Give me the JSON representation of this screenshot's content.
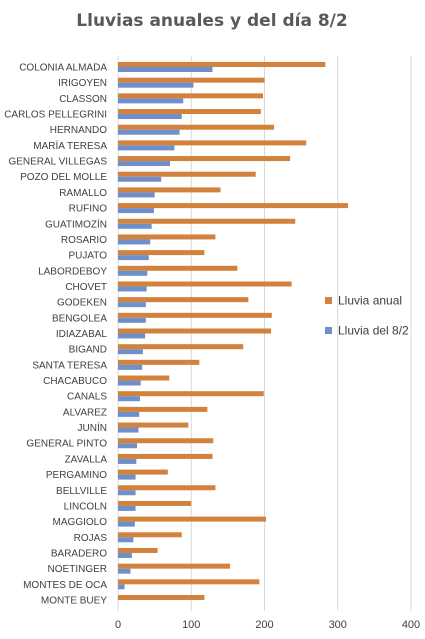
{
  "chart_data": {
    "type": "bar",
    "orientation": "horizontal",
    "title": "Lluvias anuales y del día 8/2",
    "xlabel": "",
    "ylabel": "",
    "xlim": [
      0,
      400
    ],
    "xticks": [
      0,
      100,
      200,
      300,
      400
    ],
    "grid": true,
    "legend_position": "right",
    "categories": [
      "COLONIA ALMADA",
      "IRIGOYEN",
      "CLASSON",
      "CARLOS PELLEGRINI",
      "HERNANDO",
      "MARÍA TERESA",
      "GENERAL VILLEGAS",
      "POZO DEL MOLLE",
      "RAMALLO",
      "RUFINO",
      "GUATIMOZÍN",
      "ROSARIO",
      "PUJATO",
      "LABORDEBOY",
      "CHOVET",
      "GODEKEN",
      "BENGOLEA",
      "IDIAZABAL",
      "BIGAND",
      "SANTA TERESA",
      "CHACABUCO",
      "CANALS",
      "ALVAREZ",
      "JUNÍN",
      "GENERAL PINTO",
      "ZAVALLA",
      "PERGAMINO",
      "BELLVILLE",
      "LINCOLN",
      "MAGGIOLO",
      "ROJAS",
      "BARADERO",
      "NOETINGER",
      "MONTES DE OCA",
      "MONTE BUEY"
    ],
    "series": [
      {
        "name": "Lluvia anual",
        "color": "#D2823C",
        "values": [
          283,
          200,
          198,
          195,
          213,
          257,
          235,
          188,
          140,
          314,
          242,
          133,
          118,
          163,
          237,
          178,
          210,
          209,
          171,
          111,
          70,
          199,
          122,
          96,
          130,
          129,
          68,
          133,
          100,
          202,
          87,
          54,
          153,
          193,
          118
        ]
      },
      {
        "name": "Lluvia del 8/2",
        "color": "#6F8FCB",
        "values": [
          129,
          103,
          89,
          87,
          84,
          77,
          71,
          59,
          50,
          49,
          46,
          44,
          42,
          40,
          39,
          38,
          38,
          37,
          34,
          33,
          31,
          30,
          29,
          28,
          26,
          25,
          24,
          24,
          24,
          23,
          21,
          19,
          17,
          9,
          0
        ]
      }
    ]
  }
}
